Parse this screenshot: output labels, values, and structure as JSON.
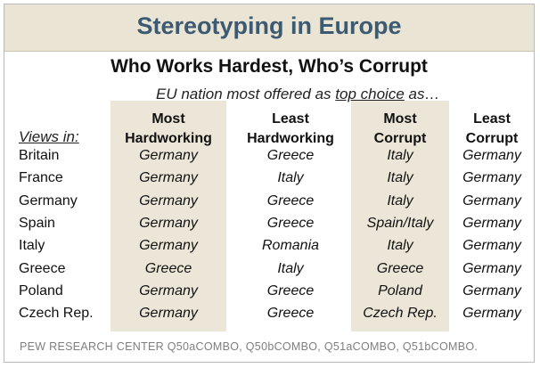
{
  "title": "Stereotyping in Europe",
  "subtitle": "Who Works Hardest, Who’s Corrupt",
  "intro": {
    "before": "EU nation most offered as ",
    "underlined": "top choice",
    "after": " as…"
  },
  "views_in_label": "Views in:",
  "columns": [
    {
      "line1": "Most",
      "line2": "Hardworking",
      "shaded": true
    },
    {
      "line1": "Least",
      "line2": "Hardworking",
      "shaded": false
    },
    {
      "line1": "Most",
      "line2": "Corrupt",
      "shaded": true
    },
    {
      "line1": "Least",
      "line2": "Corrupt",
      "shaded": false
    }
  ],
  "chart_data": {
    "type": "table",
    "title": "Stereotyping in Europe",
    "subtitle": "Who Works Hardest, Who’s Corrupt",
    "row_header": "Views in:",
    "column_headers": [
      "Most Hardworking",
      "Least Hardworking",
      "Most Corrupt",
      "Least Corrupt"
    ],
    "rows": [
      {
        "label": "Britain",
        "values": [
          "Germany",
          "Greece",
          "Italy",
          "Germany"
        ]
      },
      {
        "label": "France",
        "values": [
          "Germany",
          "Italy",
          "Italy",
          "Germany"
        ]
      },
      {
        "label": "Germany",
        "values": [
          "Germany",
          "Greece",
          "Italy",
          "Germany"
        ]
      },
      {
        "label": "Spain",
        "values": [
          "Germany",
          "Greece",
          "Spain/Italy",
          "Germany"
        ]
      },
      {
        "label": "Italy",
        "values": [
          "Germany",
          "Romania",
          "Italy",
          "Germany"
        ]
      },
      {
        "label": "Greece",
        "values": [
          "Greece",
          "Italy",
          "Greece",
          "Germany"
        ]
      },
      {
        "label": "Poland",
        "values": [
          "Germany",
          "Greece",
          "Poland",
          "Germany"
        ]
      },
      {
        "label": "Czech Rep.",
        "values": [
          "Germany",
          "Greece",
          "Czech Rep.",
          "Germany"
        ]
      }
    ]
  },
  "source": "PEW RESEARCH CENTER Q50aCOMBO, Q50bCOMBO, Q51aCOMBO, Q51bCOMBO.",
  "colors": {
    "title": "#3c5a72",
    "band": "#e9e4d4",
    "shade": "#ebe6d7",
    "source": "#7f7f7f"
  }
}
